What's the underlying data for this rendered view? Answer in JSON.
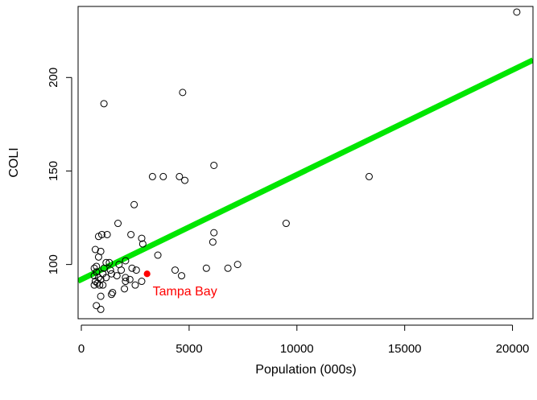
{
  "chart_data": {
    "type": "scatter",
    "xlabel": "Population (000s)",
    "ylabel": "COLI",
    "xlim": [
      -150,
      20950
    ],
    "ylim": [
      71,
      238
    ],
    "x_ticks": [
      0,
      5000,
      10000,
      15000,
      20000
    ],
    "x_tick_labels": [
      "0",
      "5000",
      "10000",
      "15000",
      "20000"
    ],
    "y_ticks": [
      100,
      150,
      200
    ],
    "y_tick_labels": [
      "100",
      "150",
      "200"
    ],
    "grid": false,
    "series": [
      {
        "marker": "open-circle",
        "color": "#000000",
        "points": [
          [
            20200,
            235
          ],
          [
            4700,
            192
          ],
          [
            1050,
            186
          ],
          [
            6150,
            153
          ],
          [
            3300,
            147
          ],
          [
            3800,
            147
          ],
          [
            4550,
            147
          ],
          [
            4800,
            145
          ],
          [
            13350,
            147
          ],
          [
            2450,
            132
          ],
          [
            1700,
            122
          ],
          [
            9500,
            122
          ],
          [
            2300,
            116
          ],
          [
            1200,
            116
          ],
          [
            6150,
            117
          ],
          [
            800,
            115
          ],
          [
            950,
            116
          ],
          [
            2800,
            114
          ],
          [
            6100,
            112
          ],
          [
            2850,
            111
          ],
          [
            650,
            108
          ],
          [
            900,
            107
          ],
          [
            3550,
            105
          ],
          [
            800,
            104
          ],
          [
            1150,
            101
          ],
          [
            1300,
            101
          ],
          [
            1750,
            100
          ],
          [
            2050,
            102
          ],
          [
            7250,
            100
          ],
          [
            600,
            98
          ],
          [
            700,
            99
          ],
          [
            1050,
            98
          ],
          [
            1350,
            97
          ],
          [
            1850,
            97
          ],
          [
            2350,
            98
          ],
          [
            2550,
            97
          ],
          [
            4350,
            97
          ],
          [
            5800,
            98
          ],
          [
            6800,
            98
          ],
          [
            700,
            96
          ],
          [
            1000,
            95
          ],
          [
            1400,
            95
          ],
          [
            1650,
            94
          ],
          [
            2050,
            93
          ],
          [
            2250,
            92
          ],
          [
            4650,
            94
          ],
          [
            600,
            94
          ],
          [
            800,
            93
          ],
          [
            1150,
            93
          ],
          [
            650,
            91
          ],
          [
            900,
            92
          ],
          [
            2050,
            91
          ],
          [
            2800,
            91
          ],
          [
            600,
            89
          ],
          [
            750,
            90
          ],
          [
            850,
            89
          ],
          [
            1000,
            89
          ],
          [
            2500,
            89
          ],
          [
            2000,
            87
          ],
          [
            1450,
            85
          ],
          [
            1400,
            84
          ],
          [
            900,
            83
          ],
          [
            700,
            78
          ],
          [
            900,
            76
          ]
        ]
      },
      {
        "name": "Tampa Bay",
        "marker": "filled-circle",
        "color": "#ff0000",
        "points": [
          [
            3050,
            95
          ]
        ]
      }
    ],
    "fit_line": {
      "type": "linear",
      "color": "#00e600",
      "intercept": 92,
      "slope": 0.0056
    },
    "annotations": [
      {
        "text": "Tampa Bay",
        "x": 3050,
        "y": 95,
        "color": "#ff0000"
      }
    ]
  }
}
